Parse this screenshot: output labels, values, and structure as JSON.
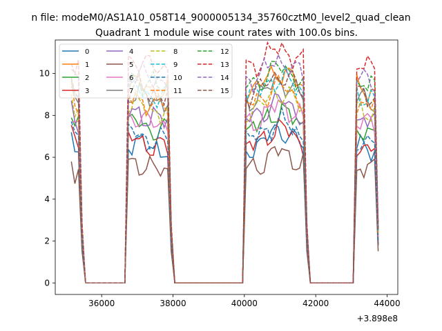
{
  "chart_data": {
    "type": "line",
    "suptitle": "n file: modeM0/AS1A10_058T14_9000005134_35760cztM0_level2_quad_clean",
    "title": "Quadrant 1 module wise count rates with 100.0s bins.",
    "xlabel": "",
    "ylabel": "",
    "x_offset_label": "+3.898e8",
    "xlim": [
      34700,
      44300
    ],
    "ylim": [
      -0.55,
      11.6
    ],
    "xticks": [
      36000,
      38000,
      40000,
      42000,
      44000
    ],
    "xtick_labels": [
      "36000",
      "38000",
      "40000",
      "42000",
      "44000"
    ],
    "yticks": [
      0,
      2,
      4,
      6,
      8,
      10
    ],
    "ytick_labels": [
      "0",
      "2",
      "4",
      "6",
      "8",
      "10"
    ],
    "grid": false,
    "legend": {
      "placement": "top-left",
      "columns": 4
    },
    "segments": [
      {
        "x0": 35150,
        "x1": 35350
      },
      {
        "x0": 36750,
        "x1": 37850
      },
      {
        "x0": 40050,
        "x1": 41650
      },
      {
        "x0": 43150,
        "x1": 43650
      }
    ],
    "series": [
      {
        "name": "0",
        "color": "#1f77b4",
        "dash": "solid",
        "level": 6.4
      },
      {
        "name": "1",
        "color": "#ff7f0e",
        "dash": "solid",
        "level": 9.2
      },
      {
        "name": "2",
        "color": "#2ca02c",
        "dash": "solid",
        "level": 7.3
      },
      {
        "name": "3",
        "color": "#d62728",
        "dash": "solid",
        "level": 6.5
      },
      {
        "name": "4",
        "color": "#9467bd",
        "dash": "solid",
        "level": 7.8
      },
      {
        "name": "5",
        "color": "#8c564b",
        "dash": "solid",
        "level": 5.4
      },
      {
        "name": "6",
        "color": "#e377c2",
        "dash": "solid",
        "level": 7.6
      },
      {
        "name": "7",
        "color": "#7f7f7f",
        "dash": "solid",
        "level": 8.7
      },
      {
        "name": "8",
        "color": "#bcbd22",
        "dash": "dashed",
        "level": 8.2
      },
      {
        "name": "9",
        "color": "#17becf",
        "dash": "dashed",
        "level": 8.9
      },
      {
        "name": "10",
        "color": "#1f77b4",
        "dash": "dashed",
        "level": 6.8
      },
      {
        "name": "11",
        "color": "#ff7f0e",
        "dash": "dashed",
        "level": 8.5
      },
      {
        "name": "12",
        "color": "#2ca02c",
        "dash": "dashed",
        "level": 9.4
      },
      {
        "name": "13",
        "color": "#d62728",
        "dash": "dashed",
        "level": 10.3
      },
      {
        "name": "14",
        "color": "#9467bd",
        "dash": "dashed",
        "level": 9.7
      },
      {
        "name": "15",
        "color": "#8c564b",
        "dash": "dashed",
        "level": 9.0
      }
    ]
  }
}
